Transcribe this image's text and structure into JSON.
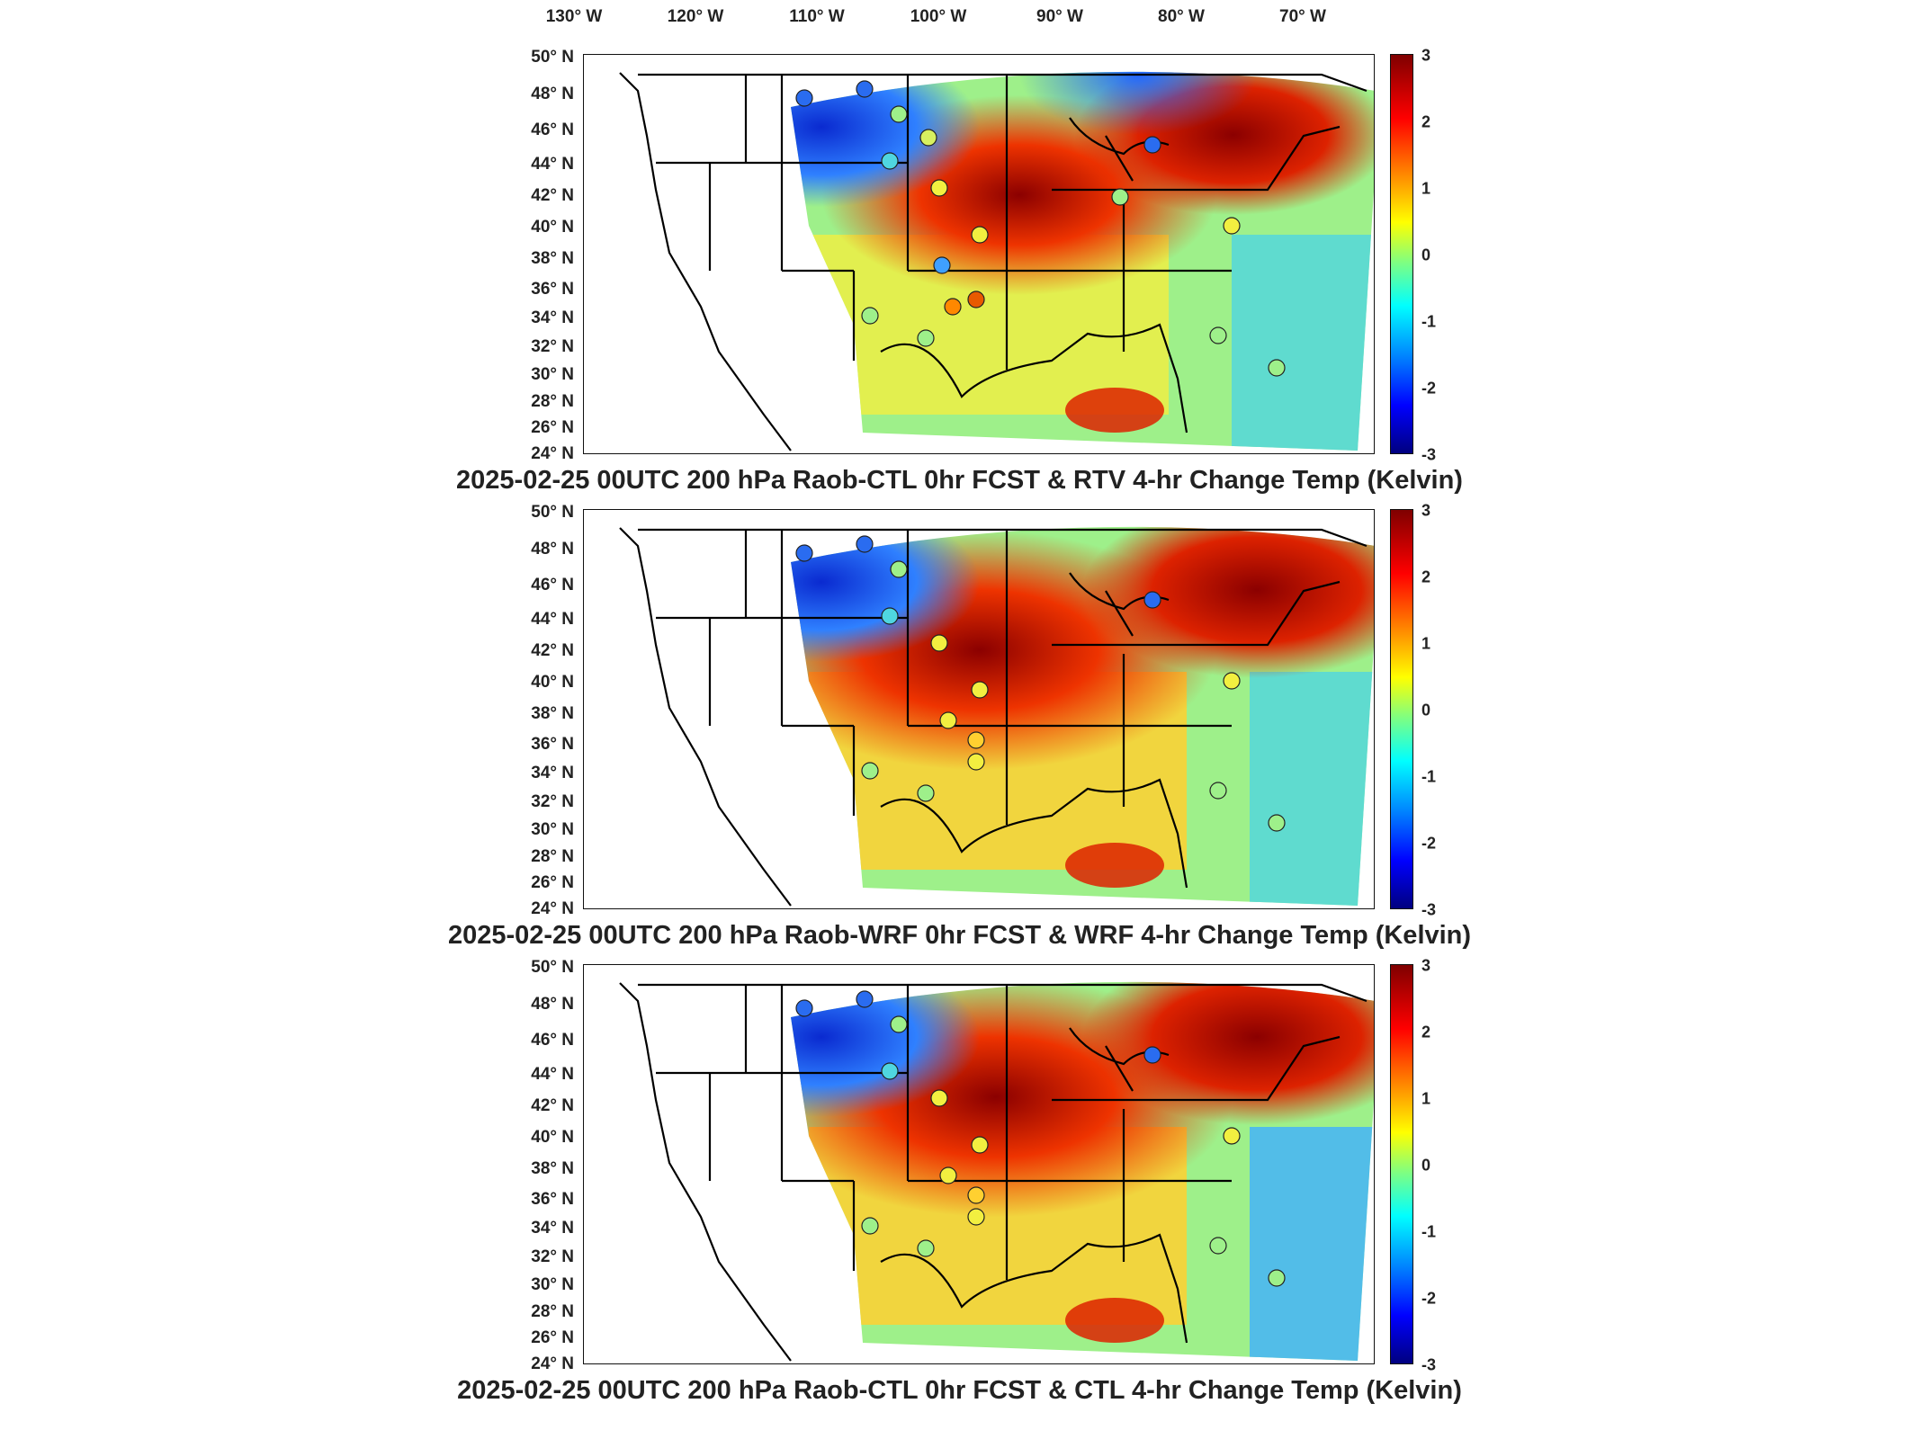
{
  "longitude_labels": [
    "130° W",
    "120° W",
    "110° W",
    "100° W",
    "90° W",
    "80° W",
    "70° W"
  ],
  "latitude_labels": [
    "50° N",
    "48° N",
    "46° N",
    "44° N",
    "42° N",
    "40° N",
    "38° N",
    "36° N",
    "34° N",
    "32° N",
    "30° N",
    "28° N",
    "26° N",
    "24° N"
  ],
  "colorbar": {
    "ticks": [
      "3",
      "2",
      "1",
      "0",
      "-1",
      "-2",
      "-3"
    ],
    "colors": [
      "#7f0000",
      "#ff0000",
      "#ff8800",
      "#ffff00",
      "#80ff80",
      "#00ffff",
      "#0080ff",
      "#0000ff",
      "#00007f"
    ]
  },
  "panels": [
    {
      "title": "2025-02-25 00UTC 200 hPa Raob-CTL 0hr FCST & RTV 4-hr Change Temp (Kelvin)"
    },
    {
      "title": "2025-02-25 00UTC 200 hPa Raob-WRF 0hr FCST & WRF 4-hr Change Temp (Kelvin)"
    },
    {
      "title": "2025-02-25 00UTC 200 hPa Raob-CTL 0hr FCST & CTL 4-hr Change Temp (Kelvin)"
    }
  ]
}
